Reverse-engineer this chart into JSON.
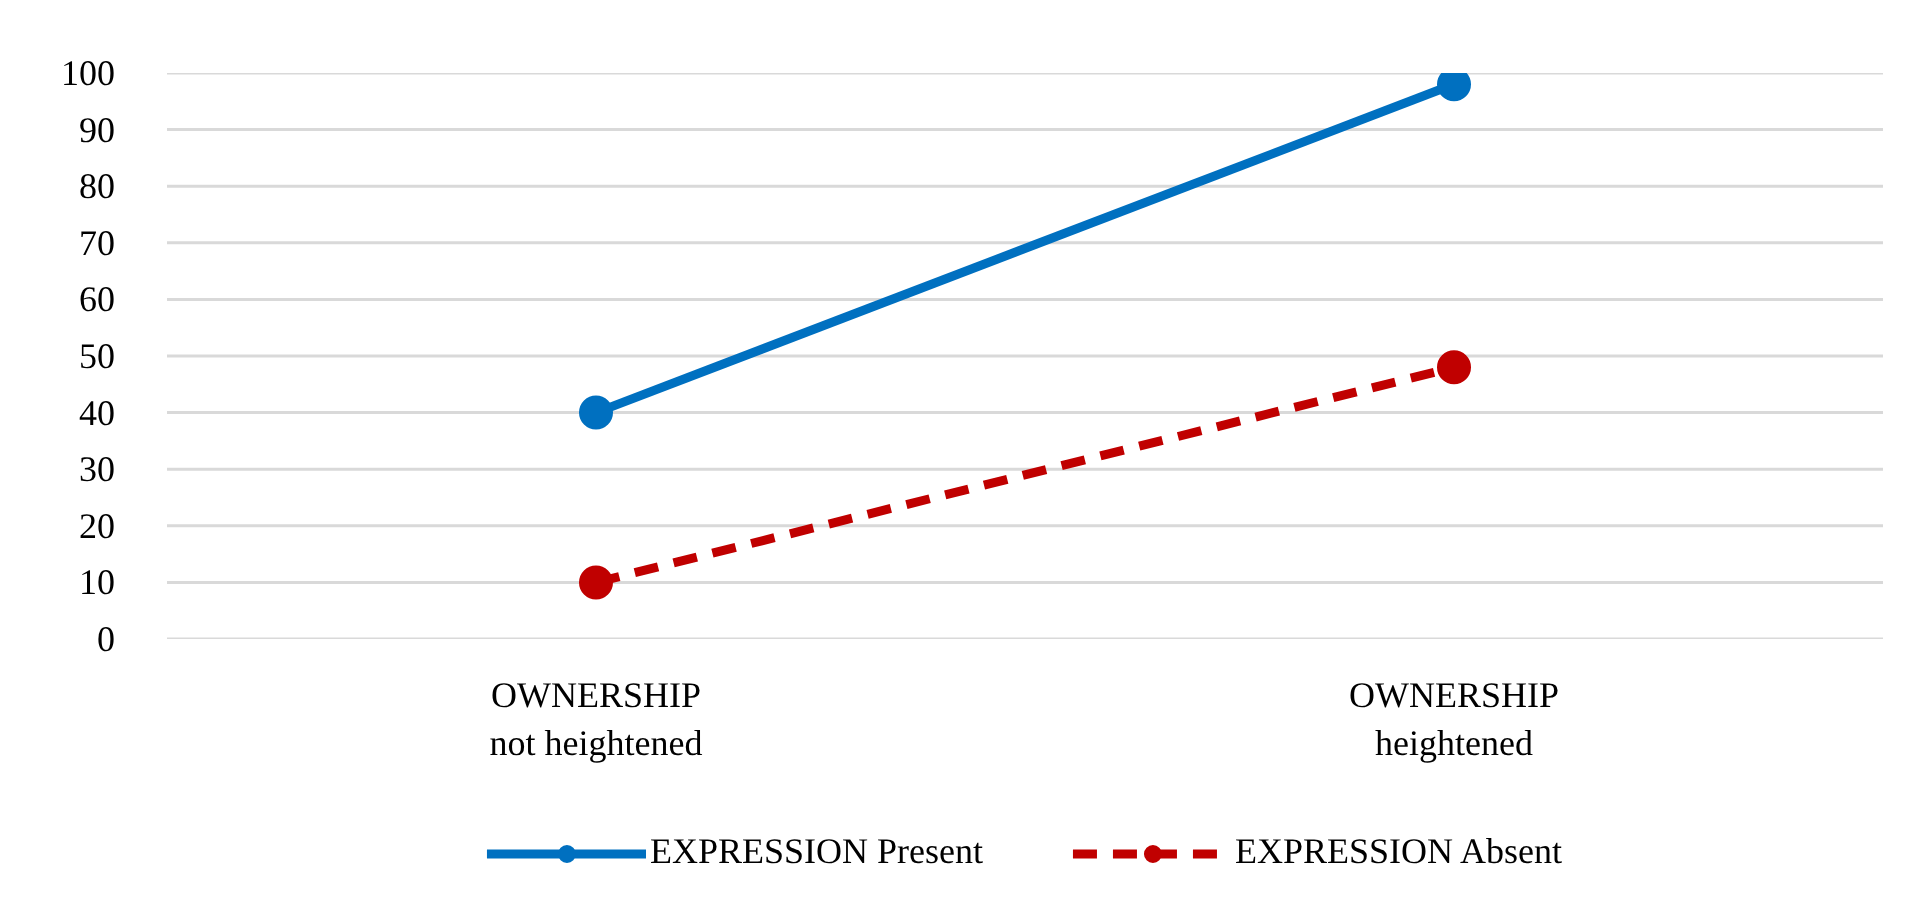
{
  "chart_data": {
    "type": "line",
    "categories": [
      "OWNERSHIP\nnot heightened",
      "OWNERSHIP\nheightened"
    ],
    "series": [
      {
        "name": "EXPRESSION Present",
        "color": "#0070c0",
        "values": [
          40,
          98
        ],
        "line_style": "solid"
      },
      {
        "name": "EXPRESSION Absent",
        "color": "#c00000",
        "values": [
          10,
          48
        ],
        "line_style": "dashed"
      }
    ],
    "ylim": [
      0,
      100
    ],
    "yticks": [
      0,
      10,
      20,
      30,
      40,
      50,
      60,
      70,
      80,
      90,
      100
    ],
    "grid": "y",
    "legend": "bottom",
    "marker": "circle"
  }
}
